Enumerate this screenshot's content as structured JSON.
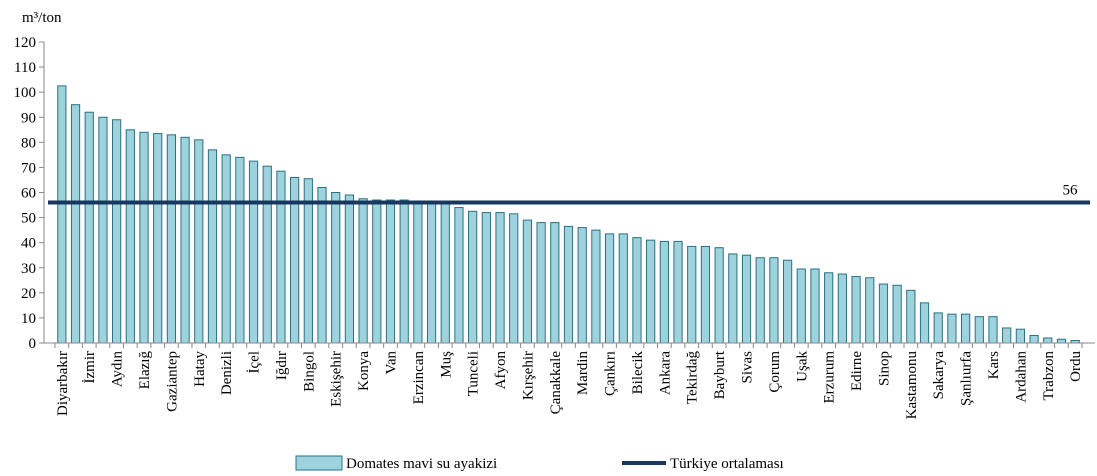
{
  "chart_data": {
    "type": "bar",
    "y_label": "m³/ton",
    "categories": [
      "Diyarbakır",
      null,
      "İzmir",
      null,
      "Aydın",
      null,
      "Elazığ",
      null,
      "Gaziantep",
      null,
      "Hatay",
      null,
      "Denizli",
      null,
      "İçel",
      null,
      "Iğdır",
      null,
      "Bingol",
      null,
      "Eskişehir",
      null,
      "Konya",
      null,
      "Van",
      null,
      "Erzincan",
      null,
      "Muş",
      null,
      "Tunceli",
      null,
      "Afyon",
      null,
      "Kırşehir",
      null,
      "Çanakkale",
      null,
      "Mardin",
      null,
      "Çankırı",
      null,
      "Bilecik",
      null,
      "Ankara",
      null,
      "Tekirdağ",
      null,
      "Bayburt",
      null,
      "Sivas",
      null,
      "Çorum",
      null,
      "Uşak",
      null,
      "Erzurum",
      null,
      "Edirne",
      null,
      "Sinop",
      null,
      "Kastamonu",
      null,
      "Sakarya",
      null,
      "Şanlıurfa",
      null,
      "Kars",
      null,
      "Ardahan",
      null,
      "Trabzon",
      null,
      "Ordu"
    ],
    "series": [
      {
        "name": "Domates mavi su ayakizi",
        "color": "#9ed3de",
        "values": [
          102.5,
          95,
          92,
          90,
          89,
          85,
          84,
          83.5,
          83,
          82,
          81,
          77,
          75,
          74,
          72.5,
          70.5,
          68.5,
          66,
          65.5,
          62,
          60,
          59,
          57.5,
          57,
          57,
          57,
          56.5,
          56.5,
          56,
          54,
          52.5,
          52,
          52,
          51.5,
          49,
          48,
          48,
          46.5,
          46,
          45,
          43.5,
          43.5,
          42,
          41,
          40.5,
          40.5,
          38.5,
          38.5,
          38,
          35.5,
          35,
          34,
          34,
          33,
          29.5,
          29.5,
          28,
          27.5,
          26.5,
          26,
          23.5,
          23,
          21,
          16,
          12,
          11.5,
          11.5,
          10.5,
          10.5,
          6,
          5.5,
          3,
          2,
          1.5,
          1
        ]
      }
    ],
    "average": {
      "name": "Türkiye ortalaması",
      "value": 56,
      "color": "#17375e"
    },
    "ylim": [
      0,
      120
    ],
    "yticks": [
      0,
      10,
      20,
      30,
      40,
      50,
      60,
      70,
      80,
      90,
      100,
      110,
      120
    ],
    "grid": false
  }
}
